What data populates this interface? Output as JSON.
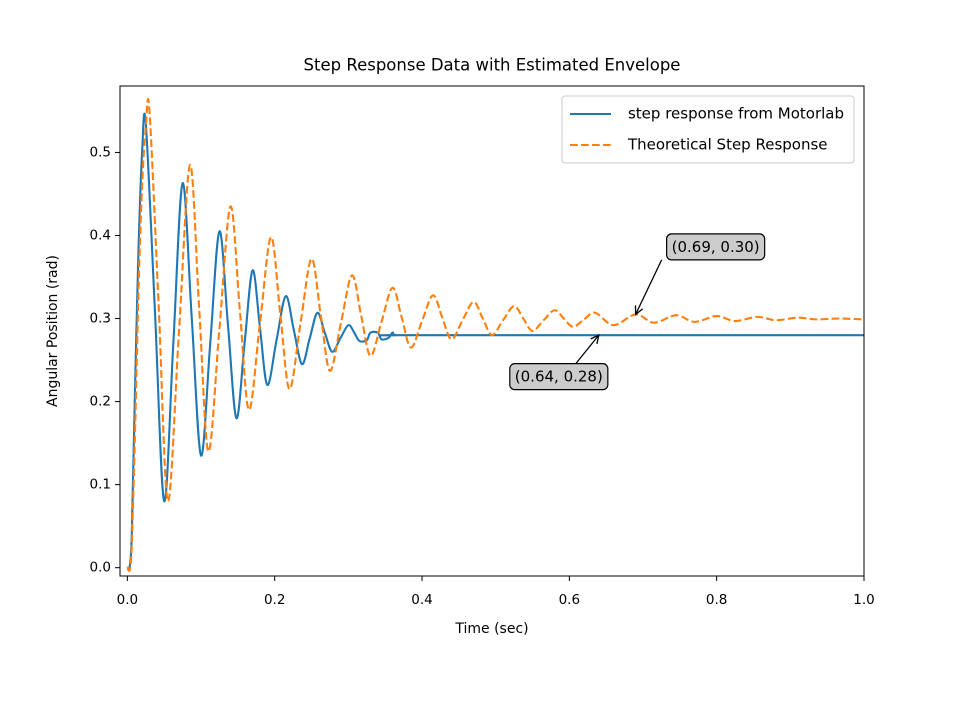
{
  "chart_data": {
    "type": "line",
    "title": "Step Response Data with Estimated Envelope",
    "x_label": "Time (sec)",
    "y_label": "Angular Position (rad)",
    "xlim": [
      -0.01,
      1.0
    ],
    "ylim": [
      -0.01,
      0.58
    ],
    "xticks": [
      {
        "value": 0,
        "label": "0.0"
      },
      0.2,
      0.4,
      0.6,
      0.8,
      {
        "value": 1,
        "label": "1.0"
      }
    ],
    "yticks": [
      {
        "value": 0,
        "label": "0.0"
      },
      0.1,
      0.2,
      0.3,
      0.4,
      0.5
    ],
    "legend": "upper right",
    "series": [
      {
        "name": "step response from Motorlab",
        "color": "#1f77b4",
        "dash": "solid",
        "x": [
          0,
          0.003,
          0.006,
          0.01,
          0.015,
          0.02,
          0.025,
          0.0375,
          0.05,
          0.0625,
          0.075,
          0.0875,
          0.1,
          0.1125,
          0.125,
          0.1365,
          0.148,
          0.159,
          0.17,
          0.18,
          0.19,
          0.2025,
          0.215,
          0.226,
          0.237,
          0.2475,
          0.258,
          0.268,
          0.278,
          0.289,
          0.3,
          0.308,
          0.315,
          0.325,
          0.33,
          0.34,
          0.345,
          0.355,
          0.36,
          0.365,
          0.4,
          1.0
        ],
        "values": [
          0,
          0,
          0.04,
          0.2,
          0.38,
          0.5,
          0.535,
          0.3075,
          0.08,
          0.272,
          0.463,
          0.299,
          0.135,
          0.27,
          0.405,
          0.293,
          0.18,
          0.269,
          0.358,
          0.289,
          0.22,
          0.274,
          0.327,
          0.286,
          0.245,
          0.276,
          0.307,
          0.283,
          0.26,
          0.276,
          0.292,
          0.283,
          0.273,
          0.274,
          0.283,
          0.283,
          0.275,
          0.277,
          0.283,
          0.28,
          0.28,
          0.28
        ]
      },
      {
        "name": "Theoretical Step Response",
        "color": "#ff7f0e",
        "dash": "dashed",
        "x": [
          0,
          0.005,
          0.01,
          0.015,
          0.02,
          0.025,
          0.03,
          0.0425,
          0.055,
          0.07,
          0.085,
          0.0975,
          0.11,
          0.125,
          0.14,
          0.1525,
          0.165,
          0.18,
          0.195,
          0.2075,
          0.22,
          0.235,
          0.25,
          0.2625,
          0.275,
          0.29,
          0.305,
          0.3175,
          0.33,
          0.345,
          0.36,
          0.3725,
          0.385,
          0.4,
          0.415,
          0.4275,
          0.44,
          0.455,
          0.47,
          0.4825,
          0.495,
          0.51,
          0.525,
          0.5375,
          0.55,
          0.565,
          0.58,
          0.5925,
          0.605,
          0.62,
          0.635,
          0.66,
          0.69,
          0.715,
          0.745,
          0.77,
          0.8,
          0.825,
          0.855,
          0.88,
          0.91,
          0.935,
          0.965,
          1.0
        ],
        "values": [
          0,
          0.01,
          0.15,
          0.33,
          0.46,
          0.53,
          0.55,
          0.315,
          0.08,
          0.283,
          0.485,
          0.312,
          0.14,
          0.288,
          0.435,
          0.312,
          0.19,
          0.294,
          0.398,
          0.306,
          0.215,
          0.294,
          0.372,
          0.304,
          0.237,
          0.295,
          0.352,
          0.303,
          0.255,
          0.296,
          0.337,
          0.301,
          0.265,
          0.297,
          0.328,
          0.301,
          0.275,
          0.298,
          0.32,
          0.3,
          0.28,
          0.298,
          0.315,
          0.3,
          0.285,
          0.298,
          0.31,
          0.3,
          0.29,
          0.299,
          0.307,
          0.292,
          0.305,
          0.295,
          0.304,
          0.296,
          0.303,
          0.297,
          0.302,
          0.298,
          0.301,
          0.299,
          0.3,
          0.299
        ]
      }
    ],
    "annotations": [
      {
        "text": "(0.64, 0.28)",
        "xy": [
          0.64,
          0.28
        ]
      },
      {
        "text": "(0.69, 0.30)",
        "xy": [
          0.69,
          0.305
        ]
      }
    ]
  }
}
